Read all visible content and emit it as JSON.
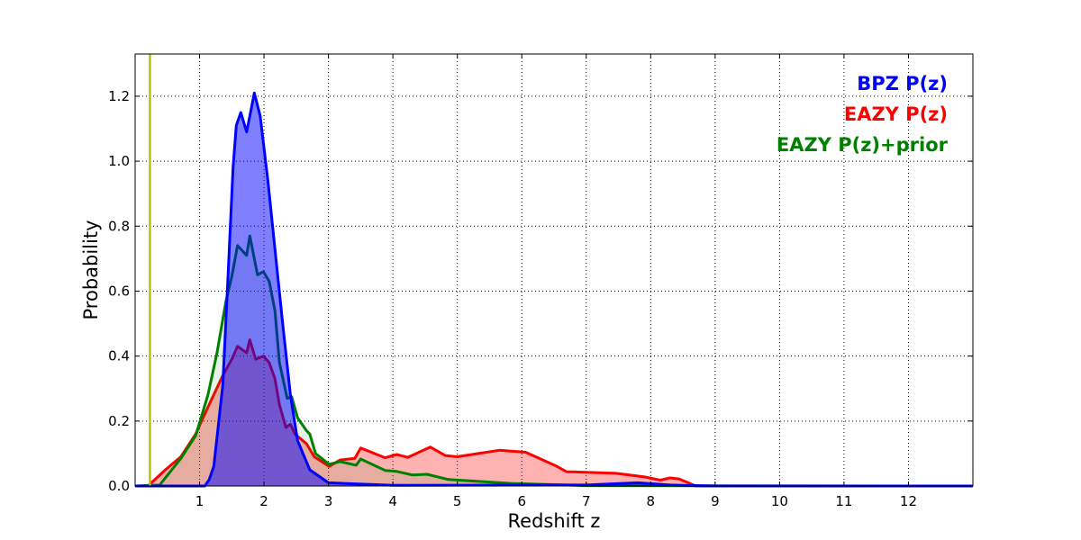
{
  "chart_data": {
    "type": "area",
    "title": "",
    "xlabel": "Redshift z",
    "ylabel": "Probability",
    "xlim": [
      0,
      13
    ],
    "ylim": [
      0,
      1.33
    ],
    "xticks": [
      1,
      2,
      3,
      4,
      5,
      6,
      7,
      8,
      9,
      10,
      11,
      12
    ],
    "yticks": [
      0.0,
      0.2,
      0.4,
      0.6,
      0.8,
      1.0,
      1.2
    ],
    "ytick_labels": [
      "0.0",
      "0.2",
      "0.4",
      "0.6",
      "0.8",
      "1.0",
      "1.2"
    ],
    "grid": true,
    "legend_placement": "top-right",
    "vline": {
      "x": 0.23,
      "color": "#bfbf00"
    },
    "series": [
      {
        "name": "EAZY P(z)",
        "color": "#ff0000",
        "fill": "#ff0000",
        "fill_opacity": 0.3,
        "points": [
          [
            0,
            0
          ],
          [
            0.2,
            0
          ],
          [
            0.47,
            0.05
          ],
          [
            0.71,
            0.09
          ],
          [
            0.94,
            0.16
          ],
          [
            1.17,
            0.26
          ],
          [
            1.36,
            0.34
          ],
          [
            1.5,
            0.39
          ],
          [
            1.59,
            0.43
          ],
          [
            1.73,
            0.41
          ],
          [
            1.78,
            0.45
          ],
          [
            1.87,
            0.39
          ],
          [
            1.99,
            0.4
          ],
          [
            2.08,
            0.38
          ],
          [
            2.17,
            0.33
          ],
          [
            2.24,
            0.25
          ],
          [
            2.34,
            0.18
          ],
          [
            2.41,
            0.19
          ],
          [
            2.48,
            0.16
          ],
          [
            2.66,
            0.13
          ],
          [
            2.78,
            0.09
          ],
          [
            3.01,
            0.06
          ],
          [
            3.18,
            0.08
          ],
          [
            3.41,
            0.085
          ],
          [
            3.5,
            0.117
          ],
          [
            3.88,
            0.087
          ],
          [
            4.06,
            0.097
          ],
          [
            4.23,
            0.088
          ],
          [
            4.58,
            0.12
          ],
          [
            4.81,
            0.094
          ],
          [
            5.0,
            0.09
          ],
          [
            5.65,
            0.11
          ],
          [
            6.06,
            0.104
          ],
          [
            6.53,
            0.062
          ],
          [
            6.69,
            0.044
          ],
          [
            7.46,
            0.039
          ],
          [
            7.9,
            0.028
          ],
          [
            8.15,
            0.018
          ],
          [
            8.3,
            0.025
          ],
          [
            8.44,
            0.022
          ],
          [
            8.56,
            0.012
          ],
          [
            8.7,
            0
          ],
          [
            13,
            0
          ]
        ]
      },
      {
        "name": "EAZY P(z)+prior",
        "color": "#008000",
        "fill": "#008000",
        "fill_opacity": 0.1,
        "points": [
          [
            0,
            0
          ],
          [
            0.38,
            0.003
          ],
          [
            0.71,
            0.085
          ],
          [
            0.94,
            0.155
          ],
          [
            1.13,
            0.28
          ],
          [
            1.27,
            0.41
          ],
          [
            1.41,
            0.57
          ],
          [
            1.5,
            0.645
          ],
          [
            1.59,
            0.74
          ],
          [
            1.73,
            0.71
          ],
          [
            1.78,
            0.77
          ],
          [
            1.9,
            0.65
          ],
          [
            1.99,
            0.66
          ],
          [
            2.08,
            0.63
          ],
          [
            2.17,
            0.54
          ],
          [
            2.24,
            0.38
          ],
          [
            2.36,
            0.27
          ],
          [
            2.43,
            0.275
          ],
          [
            2.52,
            0.21
          ],
          [
            2.66,
            0.17
          ],
          [
            2.71,
            0.16
          ],
          [
            2.8,
            0.1
          ],
          [
            3.01,
            0.067
          ],
          [
            3.18,
            0.075
          ],
          [
            3.43,
            0.064
          ],
          [
            3.5,
            0.083
          ],
          [
            3.88,
            0.048
          ],
          [
            4.06,
            0.045
          ],
          [
            4.3,
            0.034
          ],
          [
            4.53,
            0.036
          ],
          [
            4.86,
            0.02
          ],
          [
            5.83,
            0.008
          ],
          [
            7.0,
            0.001
          ],
          [
            13,
            0
          ]
        ]
      },
      {
        "name": "BPZ P(z)",
        "color": "#0000ff",
        "fill": "#0000ff",
        "fill_opacity": 0.5,
        "points": [
          [
            0,
            0
          ],
          [
            1.08,
            0
          ],
          [
            1.15,
            0.02
          ],
          [
            1.22,
            0.06
          ],
          [
            1.36,
            0.31
          ],
          [
            1.45,
            0.68
          ],
          [
            1.52,
            0.98
          ],
          [
            1.57,
            1.11
          ],
          [
            1.64,
            1.15
          ],
          [
            1.73,
            1.09
          ],
          [
            1.8,
            1.16
          ],
          [
            1.85,
            1.21
          ],
          [
            1.94,
            1.14
          ],
          [
            2.06,
            0.94
          ],
          [
            2.17,
            0.73
          ],
          [
            2.29,
            0.5
          ],
          [
            2.41,
            0.28
          ],
          [
            2.52,
            0.14
          ],
          [
            2.71,
            0.05
          ],
          [
            3.0,
            0.01
          ],
          [
            4,
            0.002
          ],
          [
            7.0,
            0.003
          ],
          [
            7.8,
            0.01
          ],
          [
            8.3,
            0.003
          ],
          [
            9,
            0
          ],
          [
            13,
            0
          ]
        ]
      }
    ],
    "legend": [
      {
        "label": "BPZ P(z)",
        "color": "#0000ff"
      },
      {
        "label": "EAZY P(z)",
        "color": "#ff0000"
      },
      {
        "label": "EAZY P(z)+prior",
        "color": "#008000"
      }
    ]
  }
}
